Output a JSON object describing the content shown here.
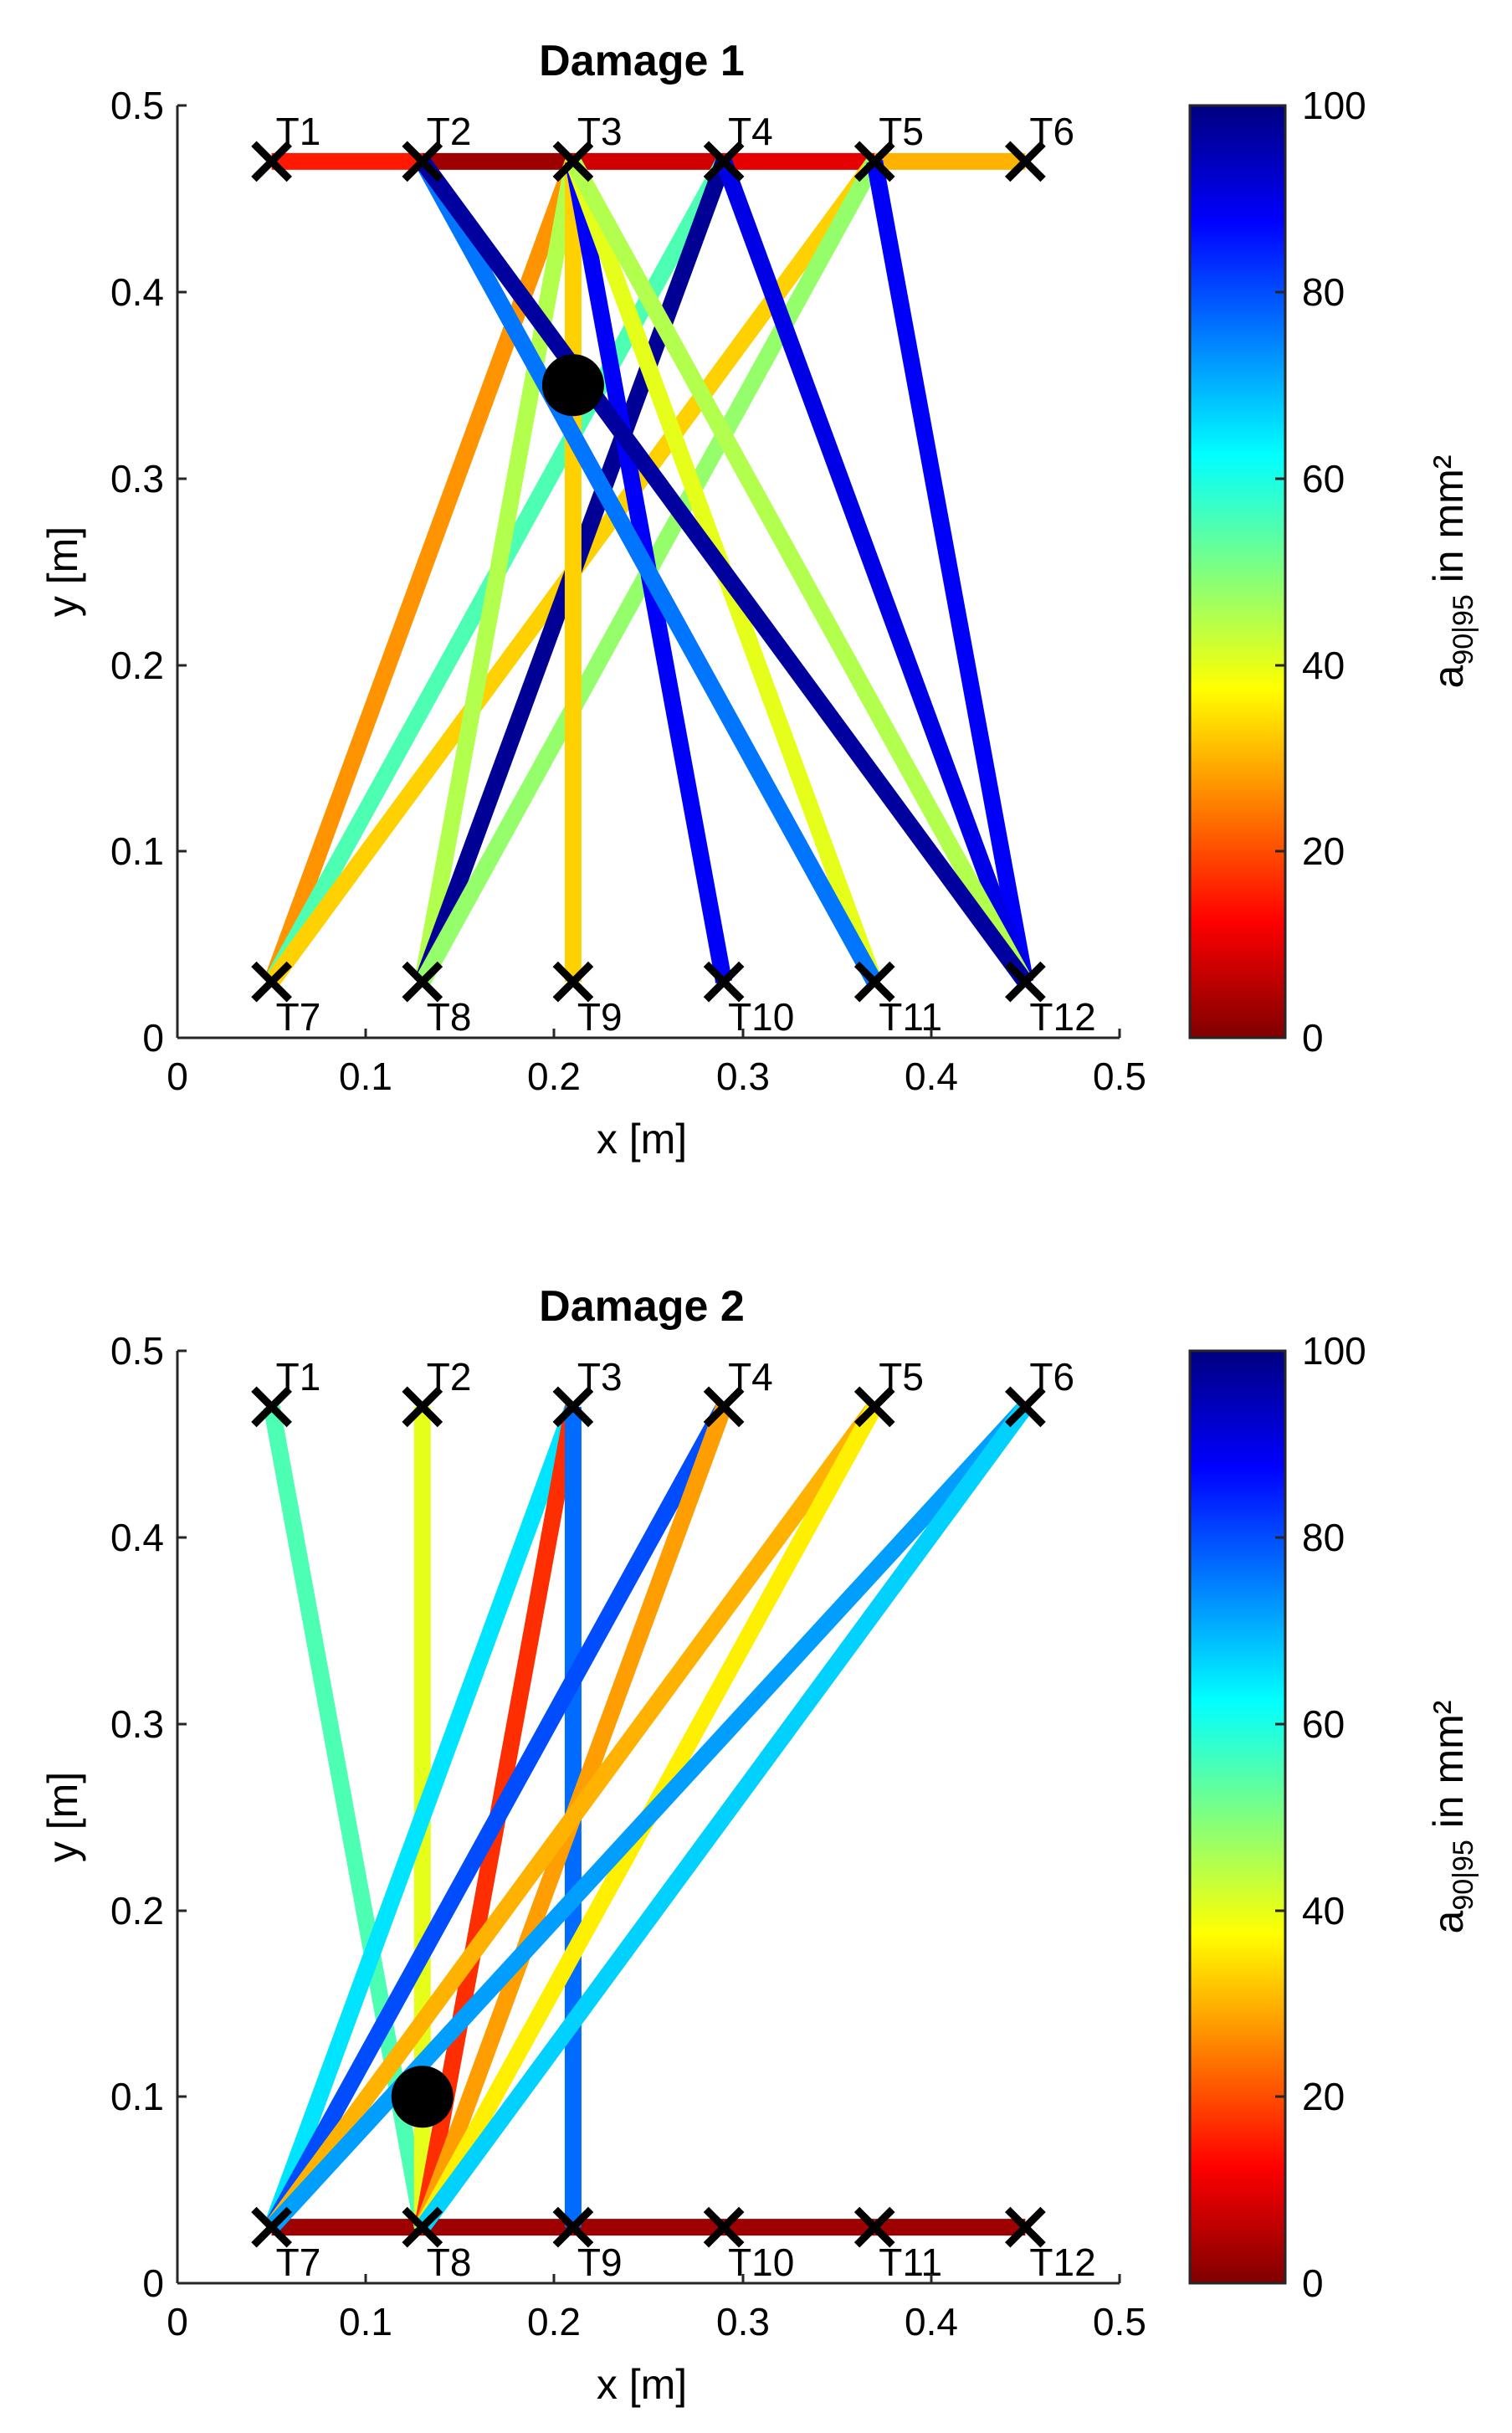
{
  "figure_caption": "",
  "chart_data": [
    {
      "type": "network",
      "title": "Damage 1",
      "xlabel": "x [m]",
      "ylabel": "y [m]",
      "xlim": [
        0,
        0.5
      ],
      "ylim": [
        0,
        0.5
      ],
      "xticks": [
        "0",
        "0.1",
        "0.2",
        "0.3",
        "0.4",
        "0.5"
      ],
      "yticks": [
        "0",
        "0.1",
        "0.2",
        "0.3",
        "0.4",
        "0.5"
      ],
      "colorbar": {
        "label_main": "a",
        "label_sub": "90|95",
        "label_unit": " in mm²",
        "min": 0,
        "max": 100,
        "ticks": [
          "0",
          "20",
          "40",
          "60",
          "80",
          "100"
        ],
        "colormap": "jet"
      },
      "transducers": [
        {
          "id": "T1",
          "x": 0.05,
          "y": 0.47
        },
        {
          "id": "T2",
          "x": 0.13,
          "y": 0.47
        },
        {
          "id": "T3",
          "x": 0.21,
          "y": 0.47
        },
        {
          "id": "T4",
          "x": 0.29,
          "y": 0.47
        },
        {
          "id": "T5",
          "x": 0.37,
          "y": 0.47
        },
        {
          "id": "T6",
          "x": 0.45,
          "y": 0.47
        },
        {
          "id": "T7",
          "x": 0.05,
          "y": 0.03
        },
        {
          "id": "T8",
          "x": 0.13,
          "y": 0.03
        },
        {
          "id": "T9",
          "x": 0.21,
          "y": 0.03
        },
        {
          "id": "T10",
          "x": 0.29,
          "y": 0.03
        },
        {
          "id": "T11",
          "x": 0.37,
          "y": 0.03
        },
        {
          "id": "T12",
          "x": 0.45,
          "y": 0.03
        }
      ],
      "damage": {
        "x": 0.21,
        "y": 0.35
      },
      "paths": [
        {
          "from": "T1",
          "to": "T2",
          "value": 15
        },
        {
          "from": "T2",
          "to": "T3",
          "value": 3
        },
        {
          "from": "T3",
          "to": "T4",
          "value": 8
        },
        {
          "from": "T4",
          "to": "T5",
          "value": 10
        },
        {
          "from": "T5",
          "to": "T6",
          "value": 30
        },
        {
          "from": "T3",
          "to": "T7",
          "value": 27
        },
        {
          "from": "T4",
          "to": "T7",
          "value": 55
        },
        {
          "from": "T5",
          "to": "T7",
          "value": 33
        },
        {
          "from": "T3",
          "to": "T8",
          "value": 45
        },
        {
          "from": "T4",
          "to": "T8",
          "value": 98
        },
        {
          "from": "T5",
          "to": "T8",
          "value": 48
        },
        {
          "from": "T3",
          "to": "T9",
          "value": 33
        },
        {
          "from": "T3",
          "to": "T10",
          "value": 88
        },
        {
          "from": "T5",
          "to": "T12",
          "value": 88
        },
        {
          "from": "T4",
          "to": "T12",
          "value": 90
        },
        {
          "from": "T3",
          "to": "T11",
          "value": 40
        },
        {
          "from": "T3",
          "to": "T12",
          "value": 45
        },
        {
          "from": "T2",
          "to": "T11",
          "value": 76
        },
        {
          "from": "T2",
          "to": "T12",
          "value": 97
        }
      ]
    },
    {
      "type": "network",
      "title": "Damage 2",
      "xlabel": "x [m]",
      "ylabel": "y [m]",
      "xlim": [
        0,
        0.5
      ],
      "ylim": [
        0,
        0.5
      ],
      "xticks": [
        "0",
        "0.1",
        "0.2",
        "0.3",
        "0.4",
        "0.5"
      ],
      "yticks": [
        "0",
        "0.1",
        "0.2",
        "0.3",
        "0.4",
        "0.5"
      ],
      "colorbar": {
        "label_main": "a",
        "label_sub": "90|95",
        "label_unit": " in mm²",
        "min": 0,
        "max": 100,
        "ticks": [
          "0",
          "20",
          "40",
          "60",
          "80",
          "100"
        ],
        "colormap": "jet"
      },
      "transducers": [
        {
          "id": "T1",
          "x": 0.05,
          "y": 0.47
        },
        {
          "id": "T2",
          "x": 0.13,
          "y": 0.47
        },
        {
          "id": "T3",
          "x": 0.21,
          "y": 0.47
        },
        {
          "id": "T4",
          "x": 0.29,
          "y": 0.47
        },
        {
          "id": "T5",
          "x": 0.37,
          "y": 0.47
        },
        {
          "id": "T6",
          "x": 0.45,
          "y": 0.47
        },
        {
          "id": "T7",
          "x": 0.05,
          "y": 0.03
        },
        {
          "id": "T8",
          "x": 0.13,
          "y": 0.03
        },
        {
          "id": "T9",
          "x": 0.21,
          "y": 0.03
        },
        {
          "id": "T10",
          "x": 0.29,
          "y": 0.03
        },
        {
          "id": "T11",
          "x": 0.37,
          "y": 0.03
        },
        {
          "id": "T12",
          "x": 0.45,
          "y": 0.03
        }
      ],
      "damage": {
        "x": 0.13,
        "y": 0.1
      },
      "paths": [
        {
          "from": "T7",
          "to": "T8",
          "value": 3
        },
        {
          "from": "T8",
          "to": "T9",
          "value": 3
        },
        {
          "from": "T9",
          "to": "T10",
          "value": 3
        },
        {
          "from": "T10",
          "to": "T11",
          "value": 3
        },
        {
          "from": "T11",
          "to": "T12",
          "value": 3
        },
        {
          "from": "T1",
          "to": "T8",
          "value": 55
        },
        {
          "from": "T2",
          "to": "T8",
          "value": 40
        },
        {
          "from": "T3",
          "to": "T7",
          "value": 65
        },
        {
          "from": "T3",
          "to": "T8",
          "value": 17
        },
        {
          "from": "T3",
          "to": "T9",
          "value": 77
        },
        {
          "from": "T4",
          "to": "T7",
          "value": 80
        },
        {
          "from": "T4",
          "to": "T8",
          "value": 28
        },
        {
          "from": "T5",
          "to": "T7",
          "value": 30
        },
        {
          "from": "T5",
          "to": "T8",
          "value": 36
        },
        {
          "from": "T6",
          "to": "T7",
          "value": 72
        },
        {
          "from": "T6",
          "to": "T8",
          "value": 67
        }
      ]
    }
  ]
}
